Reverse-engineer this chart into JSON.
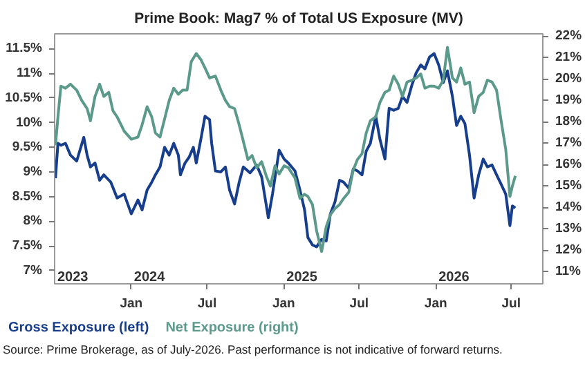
{
  "chart_data": {
    "type": "line",
    "title": "Prime Book: Mag7 % of Total US Exposure (MV)",
    "xlim": [
      "2023-07-01",
      "2026-09-15"
    ],
    "xticks": [
      {
        "value": "2024-01-01",
        "label": "Jan"
      },
      {
        "value": "2024-07-01",
        "label": "Jul"
      },
      {
        "value": "2025-01-01",
        "label": "Jan"
      },
      {
        "value": "2025-07-01",
        "label": "Jul"
      },
      {
        "value": "2026-01-01",
        "label": "Jan"
      },
      {
        "value": "2026-07-01",
        "label": "Jul"
      }
    ],
    "ylim": [
      6.73,
      11.8
    ],
    "yticks": [
      {
        "value": 7,
        "label": "7%"
      },
      {
        "value": 7.5,
        "label": "7.5%"
      },
      {
        "value": 8,
        "label": "8%"
      },
      {
        "value": 8.5,
        "label": "8.5%"
      },
      {
        "value": 9,
        "label": "9%"
      },
      {
        "value": 9.5,
        "label": "9.5%"
      },
      {
        "value": 10,
        "label": "10%"
      },
      {
        "value": 10.5,
        "label": "10.5%"
      },
      {
        "value": 11,
        "label": "11%"
      },
      {
        "value": 11.5,
        "label": "11.5%"
      }
    ],
    "y2lim": [
      10.43,
      22.1
    ],
    "y2ticks": [
      {
        "value": 11,
        "label": "11%"
      },
      {
        "value": 12,
        "label": "12%"
      },
      {
        "value": 13,
        "label": "13%"
      },
      {
        "value": 14,
        "label": "14%"
      },
      {
        "value": 15,
        "label": "15%"
      },
      {
        "value": 16,
        "label": "16%"
      },
      {
        "value": 17,
        "label": "17%"
      },
      {
        "value": 18,
        "label": "18%"
      },
      {
        "value": 19,
        "label": "19%"
      },
      {
        "value": 20,
        "label": "20%"
      },
      {
        "value": 21,
        "label": "21%"
      },
      {
        "value": 22,
        "label": "22%"
      }
    ],
    "grid": false,
    "line_style": "solid",
    "series": [
      {
        "name": "Gross Exposure (left)",
        "color": "#173e8c",
        "x": [
          "2023-07-03",
          "2023-07-09",
          "2023-07-16",
          "2023-07-27",
          "2023-08-08",
          "2023-08-23",
          "2023-09-09",
          "2023-09-17",
          "2023-09-25",
          "2023-10-06",
          "2023-10-17",
          "2023-10-27",
          "2023-11-13",
          "2023-11-28",
          "2023-12-15",
          "2024-01-01",
          "2024-01-17",
          "2024-01-27",
          "2024-02-08",
          "2024-02-19",
          "2024-02-28",
          "2024-03-10",
          "2024-03-21",
          "2024-04-01",
          "2024-04-12",
          "2024-04-23",
          "2024-04-28",
          "2024-05-09",
          "2024-05-19",
          "2024-05-29",
          "2024-06-05",
          "2024-06-16",
          "2024-06-26",
          "2024-07-07",
          "2024-07-12",
          "2024-07-21",
          "2024-08-03",
          "2024-08-14",
          "2024-08-24",
          "2024-09-05",
          "2024-09-16",
          "2024-09-26",
          "2024-10-12",
          "2024-10-28",
          "2024-11-09",
          "2024-11-25",
          "2024-12-05",
          "2024-12-21",
          "2025-01-02",
          "2025-01-12",
          "2025-01-28",
          "2025-02-09",
          "2025-02-20",
          "2025-02-28",
          "2025-03-11",
          "2025-03-21",
          "2025-04-02",
          "2025-04-13",
          "2025-04-23",
          "2025-05-04",
          "2025-05-15",
          "2025-05-25",
          "2025-06-06",
          "2025-06-17",
          "2025-06-27",
          "2025-07-08",
          "2025-07-18",
          "2025-07-28",
          "2025-08-10",
          "2025-08-20",
          "2025-09-01",
          "2025-09-11",
          "2025-09-22",
          "2025-10-03",
          "2025-10-13",
          "2025-10-24",
          "2025-11-05",
          "2025-11-15",
          "2025-11-26",
          "2025-12-06",
          "2025-12-17",
          "2025-12-28",
          "2026-01-08",
          "2026-01-19",
          "2026-01-29",
          "2026-02-10",
          "2026-02-20",
          "2026-03-02",
          "2026-03-12",
          "2026-03-23",
          "2026-04-03",
          "2026-04-14",
          "2026-04-25",
          "2026-05-05",
          "2026-05-16",
          "2026-05-27",
          "2026-06-07",
          "2026-06-18",
          "2026-06-28",
          "2026-07-04",
          "2026-07-11"
        ],
        "values": [
          8.87,
          9.58,
          9.54,
          9.58,
          9.34,
          9.22,
          9.7,
          9.34,
          9.1,
          9.18,
          8.83,
          8.94,
          8.79,
          8.47,
          8.55,
          8.15,
          8.43,
          8.23,
          8.63,
          8.79,
          8.94,
          9.1,
          9.5,
          9.34,
          9.58,
          9.34,
          8.94,
          9.18,
          9.3,
          9.5,
          9.18,
          9.66,
          10.13,
          10.06,
          9.58,
          9.02,
          9.0,
          9.1,
          8.63,
          8.35,
          8.79,
          9.1,
          8.98,
          9.14,
          8.9,
          8.07,
          8.55,
          9.44,
          9.26,
          9.18,
          9.02,
          8.63,
          8.23,
          7.67,
          7.52,
          7.48,
          7.63,
          7.6,
          8.15,
          8.39,
          8.83,
          8.79,
          8.67,
          9.06,
          9.02,
          8.94,
          9.42,
          9.58,
          10.13,
          9.66,
          9.26,
          10.29,
          10.25,
          10.29,
          10.53,
          10.41,
          10.77,
          11.01,
          11.17,
          11.09,
          11.33,
          11.4,
          11.17,
          10.81,
          11.05,
          10.53,
          9.94,
          10.13,
          9.98,
          9.34,
          8.47,
          8.94,
          9.26,
          9.1,
          9.14,
          8.94,
          8.75,
          8.55,
          7.91,
          8.31,
          8.27
        ]
      },
      {
        "name": "Net Exposure (right)",
        "color": "#5b9a8b",
        "axis": "y2",
        "x": [
          "2023-07-03",
          "2023-07-09",
          "2023-07-16",
          "2023-07-27",
          "2023-08-08",
          "2023-08-23",
          "2023-09-04",
          "2023-09-17",
          "2023-09-25",
          "2023-10-06",
          "2023-10-17",
          "2023-10-27",
          "2023-11-08",
          "2023-11-18",
          "2023-11-28",
          "2023-12-15",
          "2024-01-01",
          "2024-01-17",
          "2024-01-27",
          "2024-02-08",
          "2024-02-19",
          "2024-02-28",
          "2024-03-10",
          "2024-03-21",
          "2024-04-01",
          "2024-04-12",
          "2024-04-23",
          "2024-05-03",
          "2024-05-14",
          "2024-05-24",
          "2024-06-05",
          "2024-06-16",
          "2024-06-26",
          "2024-07-07",
          "2024-07-21",
          "2024-08-03",
          "2024-08-14",
          "2024-08-24",
          "2024-09-05",
          "2024-09-16",
          "2024-09-26",
          "2024-10-07",
          "2024-10-17",
          "2024-10-28",
          "2024-11-09",
          "2024-11-20",
          "2024-11-30",
          "2024-12-11",
          "2024-12-21",
          "2025-01-02",
          "2025-01-12",
          "2025-01-28",
          "2025-02-09",
          "2025-02-20",
          "2025-02-28",
          "2025-03-11",
          "2025-03-21",
          "2025-04-02",
          "2025-04-13",
          "2025-04-23",
          "2025-05-04",
          "2025-05-15",
          "2025-05-25",
          "2025-06-06",
          "2025-06-17",
          "2025-06-27",
          "2025-07-08",
          "2025-07-18",
          "2025-07-28",
          "2025-08-10",
          "2025-08-20",
          "2025-09-01",
          "2025-09-11",
          "2025-09-22",
          "2025-10-03",
          "2025-10-13",
          "2025-10-24",
          "2025-11-05",
          "2025-11-15",
          "2025-11-26",
          "2025-12-06",
          "2025-12-17",
          "2025-12-28",
          "2026-01-08",
          "2026-01-19",
          "2026-01-29",
          "2026-02-10",
          "2026-02-20",
          "2026-03-02",
          "2026-03-12",
          "2026-03-23",
          "2026-04-03",
          "2026-04-14",
          "2026-04-25",
          "2026-05-05",
          "2026-05-16",
          "2026-05-27",
          "2026-06-07",
          "2026-06-18",
          "2026-06-28",
          "2026-07-04",
          "2026-07-11"
        ],
        "values": [
          16.9,
          18.23,
          19.66,
          19.56,
          19.75,
          19.47,
          18.99,
          18.61,
          18.04,
          19.18,
          19.75,
          19.18,
          19.37,
          18.51,
          18.23,
          17.56,
          17.18,
          17.28,
          17.85,
          18.7,
          18.23,
          17.47,
          17.28,
          18.13,
          18.99,
          19.56,
          19.28,
          19.47,
          19.47,
          20.8,
          21.18,
          20.9,
          20.51,
          20.04,
          20.13,
          19.47,
          18.99,
          18.7,
          18.61,
          17.85,
          17.09,
          16.23,
          16.42,
          15.85,
          16.13,
          15.47,
          14.99,
          15.94,
          15.56,
          15.94,
          15.85,
          15.37,
          14.42,
          14.61,
          14.51,
          14.13,
          12.9,
          11.94,
          13.09,
          13.66,
          13.94,
          14.13,
          14.42,
          14.7,
          15.75,
          16.23,
          16.51,
          17.47,
          18.04,
          18.23,
          18.9,
          19.37,
          19.47,
          20.13,
          19.75,
          19.18,
          19.85,
          19.94,
          20.04,
          20.23,
          19.56,
          19.66,
          19.66,
          19.56,
          19.94,
          21.47,
          20.04,
          19.85,
          20.51,
          19.75,
          19.85,
          18.42,
          19.18,
          19.37,
          19.94,
          19.85,
          19.47,
          18.04,
          16.7,
          14.51,
          14.99,
          15.47
        ]
      }
    ],
    "annotations": [
      "2023",
      "2024",
      "2025",
      "2026",
      "Source: Prime Brokerage, as of July-2026. Past performance is not indicative of forward returns."
    ]
  }
}
